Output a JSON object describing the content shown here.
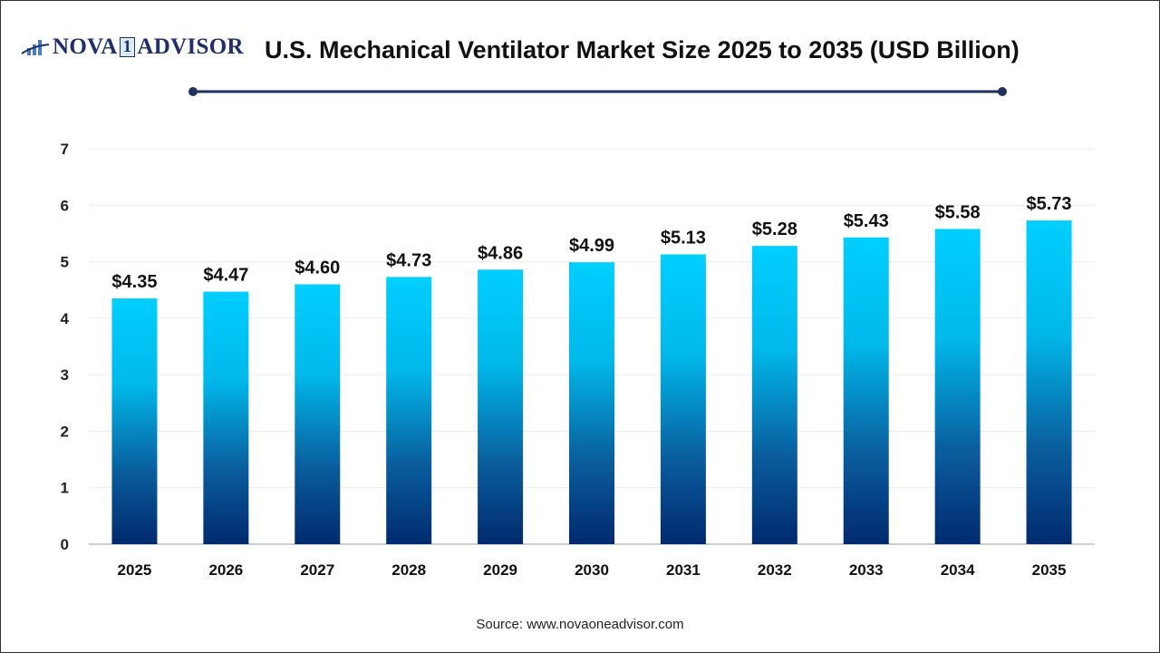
{
  "logo": {
    "text": "NOVA",
    "one": "1",
    "text2": "ADVISOR"
  },
  "source": "Source: www.novaoneadvisor.com",
  "colors": {
    "bar_top": "#00cfff",
    "bar_bottom": "#002a6e",
    "accent_line": "#1f2f5e"
  },
  "chart_data": {
    "type": "bar",
    "title": "U.S. Mechanical Ventilator Market Size 2025 to 2035 (USD Billion)",
    "categories": [
      "2025",
      "2026",
      "2027",
      "2028",
      "2029",
      "2030",
      "2031",
      "2032",
      "2033",
      "2034",
      "2035"
    ],
    "values": [
      4.35,
      4.47,
      4.6,
      4.73,
      4.86,
      4.99,
      5.13,
      5.28,
      5.43,
      5.58,
      5.73
    ],
    "data_labels": [
      "$4.35",
      "$4.47",
      "$4.60",
      "$4.73",
      "$4.86",
      "$4.99",
      "$5.13",
      "$5.28",
      "$5.43",
      "$5.58",
      "$5.73"
    ],
    "yticks": [
      "0",
      "1",
      "2",
      "3",
      "4",
      "5",
      "6",
      "7"
    ],
    "ylim": [
      0,
      7
    ],
    "xlabel": "",
    "ylabel": "",
    "grid": true
  }
}
